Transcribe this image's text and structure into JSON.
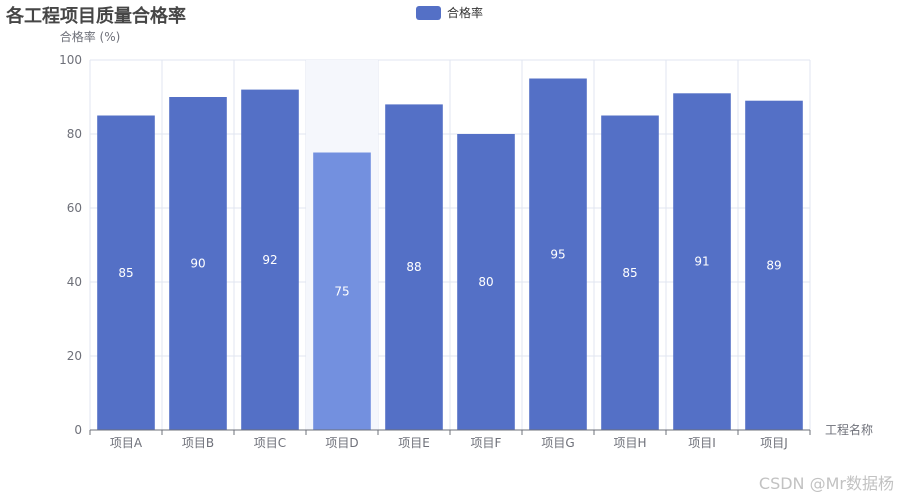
{
  "title": "各工程项目质量合格率",
  "legend": {
    "label": "合格率"
  },
  "watermark": "CSDN @Mr数据杨",
  "colors": {
    "bar": "#5470c6",
    "bar_highlight": "#7390df",
    "highlight_band": "#f5f7fc",
    "label": "#ffffff",
    "axis_text": "#6e7079",
    "grid": "#e0e6f1",
    "axis_line": "#6e7079"
  },
  "chart_data": {
    "type": "bar",
    "title": "各工程项目质量合格率",
    "xlabel": "工程名称",
    "ylabel": "合格率 (%)",
    "ylim": [
      0,
      100
    ],
    "yticks": [
      0,
      20,
      40,
      60,
      80,
      100
    ],
    "categories": [
      "项目A",
      "项目B",
      "项目C",
      "项目D",
      "项目E",
      "项目F",
      "项目G",
      "项目H",
      "项目I",
      "项目J"
    ],
    "series": [
      {
        "name": "合格率",
        "values": [
          85,
          90,
          92,
          75,
          88,
          80,
          95,
          85,
          91,
          89
        ]
      }
    ],
    "highlighted_category": "项目D",
    "grid": true,
    "legend_position": "top-center"
  }
}
